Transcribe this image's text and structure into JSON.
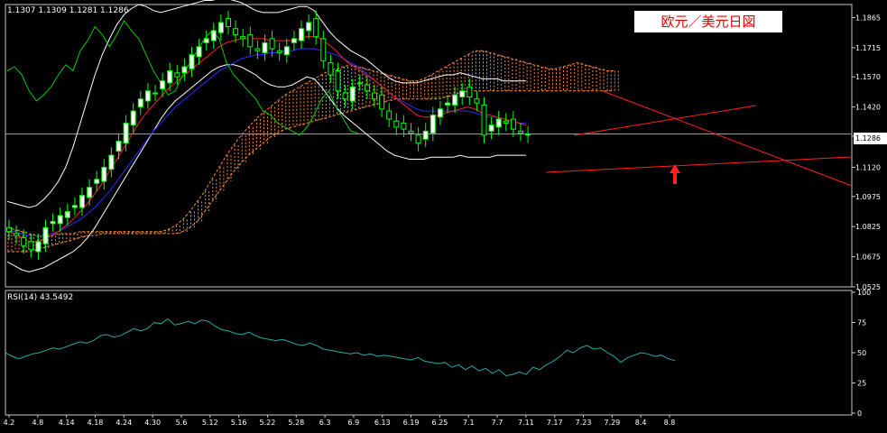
{
  "ohlc_text": "1.1307 1.1309 1.1281 1.1286",
  "title": "欧元／美元日図",
  "current_price": "1.1286",
  "colors": {
    "background": "#000000",
    "frame": "#c8c8c8",
    "bull_candle": "#ffffff",
    "bear_candle": "#000000",
    "candle_wick": "#00ff00",
    "bollinger": "#ffffff",
    "ma_red": "#ff2020",
    "ma_blue": "#2a2aff",
    "chikou_green": "#00cc00",
    "cloud": "#ff8c3c",
    "trendline": "#ff2020",
    "rsi_line": "#2aa8a8",
    "title_text": "#e00000"
  },
  "chart_data": [
    {
      "type": "line",
      "title": "欧元／美元日図",
      "instrument": "EUR/USD",
      "x_tick_labels": [
        "4.2",
        "4.8",
        "4.14",
        "4.18",
        "4.24",
        "4.30",
        "5.6",
        "5.12",
        "5.16",
        "5.22",
        "5.28",
        "6.3",
        "6.9",
        "6.13",
        "6.19",
        "6.25",
        "7.1",
        "7.7",
        "7.11",
        "7.17",
        "7.23",
        "7.29",
        "8.4",
        "8.8"
      ],
      "y_tick_labels": [
        "1.1865",
        "1.1715",
        "1.1570",
        "1.1420",
        "1.1275",
        "1.1120",
        "1.0975",
        "1.0825",
        "1.0675",
        "1.0525"
      ],
      "ylim": [
        1.0525,
        1.193
      ],
      "last_price": 1.1286,
      "indicators": [
        "candlestick",
        "bollinger_bands",
        "moving_average_red",
        "moving_average_blue",
        "ichimoku_cloud",
        "chikou_span"
      ],
      "series": [
        {
          "name": "close",
          "values": [
            1.08,
            1.078,
            1.073,
            1.071,
            1.075,
            1.082,
            1.085,
            1.088,
            1.09,
            1.093,
            1.098,
            1.102,
            1.106,
            1.112,
            1.118,
            1.125,
            1.134,
            1.14,
            1.146,
            1.15,
            1.149,
            1.155,
            1.16,
            1.157,
            1.162,
            1.168,
            1.172,
            1.176,
            1.18,
            1.184,
            1.182,
            1.178,
            1.176,
            1.172,
            1.17,
            1.174,
            1.171,
            1.169,
            1.172,
            1.176,
            1.181,
            1.184,
            1.177,
            1.165,
            1.158,
            1.15,
            1.146,
            1.152,
            1.154,
            1.15,
            1.146,
            1.141,
            1.136,
            1.132,
            1.131,
            1.129,
            1.124,
            1.13,
            1.138,
            1.141,
            1.144,
            1.148,
            1.15,
            1.147,
            1.144,
            1.128,
            1.133,
            1.136,
            1.134,
            1.131,
            1.129,
            1.1286
          ]
        },
        {
          "name": "bollinger_upper",
          "values": [
            1.095,
            1.094,
            1.093,
            1.092,
            1.093,
            1.096,
            1.1,
            1.105,
            1.112,
            1.122,
            1.134,
            1.146,
            1.158,
            1.168,
            1.176,
            1.183,
            1.188,
            1.191,
            1.193,
            1.192,
            1.19,
            1.189,
            1.19,
            1.191,
            1.192,
            1.193,
            1.194,
            1.195,
            1.195,
            1.196,
            1.196,
            1.195,
            1.194,
            1.192,
            1.19,
            1.189,
            1.189,
            1.189,
            1.19,
            1.191,
            1.192,
            1.192,
            1.19,
            1.185,
            1.18,
            1.176,
            1.173,
            1.17,
            1.168,
            1.166,
            1.163,
            1.16,
            1.157,
            1.155,
            1.154,
            1.154,
            1.154,
            1.155,
            1.156,
            1.157,
            1.158,
            1.158,
            1.159,
            1.158,
            1.157,
            1.156,
            1.156,
            1.156,
            1.155,
            1.155,
            1.155,
            1.155
          ]
        },
        {
          "name": "bollinger_lower",
          "values": [
            1.065,
            1.063,
            1.061,
            1.06,
            1.061,
            1.062,
            1.064,
            1.066,
            1.068,
            1.07,
            1.073,
            1.077,
            1.082,
            1.088,
            1.094,
            1.1,
            1.106,
            1.112,
            1.118,
            1.124,
            1.13,
            1.136,
            1.141,
            1.145,
            1.148,
            1.151,
            1.154,
            1.157,
            1.16,
            1.162,
            1.163,
            1.163,
            1.162,
            1.16,
            1.158,
            1.155,
            1.153,
            1.152,
            1.152,
            1.153,
            1.155,
            1.157,
            1.156,
            1.152,
            1.147,
            1.142,
            1.138,
            1.135,
            1.132,
            1.129,
            1.126,
            1.123,
            1.12,
            1.118,
            1.117,
            1.116,
            1.116,
            1.116,
            1.117,
            1.117,
            1.117,
            1.117,
            1.118,
            1.117,
            1.117,
            1.117,
            1.117,
            1.118,
            1.118,
            1.118,
            1.118,
            1.118
          ]
        },
        {
          "name": "ma_red",
          "values": [
            1.08,
            1.079,
            1.077,
            1.075,
            1.075,
            1.076,
            1.078,
            1.08,
            1.083,
            1.086,
            1.09,
            1.094,
            1.099,
            1.104,
            1.11,
            1.116,
            1.122,
            1.128,
            1.134,
            1.139,
            1.143,
            1.147,
            1.151,
            1.154,
            1.157,
            1.16,
            1.163,
            1.166,
            1.169,
            1.172,
            1.174,
            1.175,
            1.176,
            1.176,
            1.176,
            1.176,
            1.175,
            1.175,
            1.175,
            1.175,
            1.176,
            1.177,
            1.177,
            1.176,
            1.173,
            1.17,
            1.166,
            1.163,
            1.161,
            1.158,
            1.156,
            1.153,
            1.15,
            1.147,
            1.144,
            1.141,
            1.138,
            1.137,
            1.137,
            1.138,
            1.139,
            1.14,
            1.141,
            1.142,
            1.141,
            1.139,
            1.138,
            1.137,
            1.136,
            1.135,
            1.134,
            1.133
          ]
        },
        {
          "name": "ma_blue",
          "values": [
            1.081,
            1.08,
            1.079,
            1.078,
            1.078,
            1.078,
            1.079,
            1.08,
            1.082,
            1.084,
            1.086,
            1.089,
            1.092,
            1.096,
            1.1,
            1.105,
            1.11,
            1.115,
            1.12,
            1.125,
            1.13,
            1.134,
            1.138,
            1.142,
            1.145,
            1.148,
            1.151,
            1.154,
            1.157,
            1.16,
            1.162,
            1.164,
            1.166,
            1.167,
            1.168,
            1.168,
            1.169,
            1.169,
            1.17,
            1.17,
            1.171,
            1.171,
            1.171,
            1.17,
            1.169,
            1.168,
            1.166,
            1.164,
            1.162,
            1.159,
            1.156,
            1.153,
            1.15,
            1.147,
            1.145,
            1.143,
            1.141,
            1.14,
            1.14,
            1.14,
            1.14,
            1.14,
            1.14,
            1.14,
            1.139,
            1.138,
            1.137,
            1.137,
            1.136,
            1.135,
            1.134,
            1.134
          ]
        },
        {
          "name": "chikou",
          "values": [
            1.16,
            1.162,
            1.158,
            1.15,
            1.145,
            1.148,
            1.152,
            1.158,
            1.163,
            1.16,
            1.17,
            1.175,
            1.182,
            1.178,
            1.172,
            1.178,
            1.185,
            1.18,
            1.176,
            1.168,
            1.16,
            1.154,
            1.148,
            1.15,
            1.158,
            1.164,
            1.17,
            1.176,
            1.18,
            1.176,
            1.164,
            1.158,
            1.154,
            1.15,
            1.146,
            1.14,
            1.138,
            1.134,
            1.132,
            1.13,
            1.128,
            1.132,
            1.138,
            1.146,
            1.15,
            1.142,
            1.136,
            1.13,
            1.129
          ]
        },
        {
          "name": "cloud_span_a",
          "values": [
            1.082,
            1.081,
            1.08,
            1.079,
            1.078,
            1.078,
            1.078,
            1.079,
            1.079,
            1.079,
            1.08,
            1.08,
            1.08,
            1.08,
            1.08,
            1.08,
            1.08,
            1.08,
            1.08,
            1.08,
            1.08,
            1.08,
            1.081,
            1.083,
            1.086,
            1.09,
            1.095,
            1.1,
            1.106,
            1.112,
            1.118,
            1.123,
            1.128,
            1.132,
            1.136,
            1.139,
            1.142,
            1.145,
            1.148,
            1.15,
            1.152,
            1.154,
            1.156,
            1.158,
            1.16,
            1.161,
            1.162,
            1.163,
            1.162,
            1.161,
            1.16,
            1.159,
            1.158,
            1.157,
            1.156,
            1.155,
            1.155,
            1.156,
            1.158,
            1.16,
            1.162,
            1.164,
            1.166,
            1.168,
            1.17,
            1.17,
            1.169,
            1.168,
            1.167,
            1.166,
            1.165,
            1.164,
            1.163,
            1.162,
            1.161,
            1.161,
            1.162,
            1.163,
            1.164,
            1.163,
            1.162,
            1.161,
            1.16,
            1.16
          ]
        },
        {
          "name": "cloud_span_b",
          "values": [
            1.07,
            1.07,
            1.07,
            1.07,
            1.071,
            1.072,
            1.073,
            1.074,
            1.075,
            1.076,
            1.077,
            1.078,
            1.078,
            1.079,
            1.079,
            1.079,
            1.079,
            1.079,
            1.079,
            1.079,
            1.079,
            1.079,
            1.079,
            1.079,
            1.08,
            1.082,
            1.085,
            1.09,
            1.095,
            1.1,
            1.105,
            1.11,
            1.114,
            1.118,
            1.121,
            1.124,
            1.127,
            1.129,
            1.131,
            1.132,
            1.133,
            1.134,
            1.135,
            1.136,
            1.137,
            1.138,
            1.139,
            1.14,
            1.141,
            1.142,
            1.143,
            1.144,
            1.145,
            1.146,
            1.146,
            1.146,
            1.146,
            1.146,
            1.146,
            1.146,
            1.147,
            1.148,
            1.149,
            1.15,
            1.15,
            1.15,
            1.15,
            1.15,
            1.15,
            1.15,
            1.15,
            1.15,
            1.15,
            1.15,
            1.15,
            1.15,
            1.15,
            1.15,
            1.15,
            1.15,
            1.15,
            1.15,
            1.15,
            1.15
          ]
        }
      ]
    },
    {
      "type": "line",
      "title": "RSI(14) 43.5492",
      "y_tick_labels": [
        "100",
        "75",
        "50",
        "25",
        "0"
      ],
      "ylim": [
        0,
        100
      ],
      "series": [
        {
          "name": "RSI(14)",
          "values": [
            50,
            47,
            45,
            47,
            49,
            50,
            52,
            54,
            53,
            55,
            57,
            59,
            58,
            60,
            64,
            65,
            63,
            64,
            67,
            70,
            68,
            70,
            75,
            74,
            78,
            73,
            74,
            76,
            74,
            77,
            76,
            72,
            69,
            68,
            66,
            65,
            67,
            64,
            62,
            61,
            60,
            61,
            59,
            57,
            56,
            58,
            56,
            53,
            52,
            51,
            50,
            49,
            50,
            48,
            49,
            47,
            48,
            47,
            46,
            45,
            44,
            46,
            43,
            42,
            41,
            42,
            38,
            40,
            36,
            39,
            35,
            37,
            33,
            36,
            31,
            32,
            34,
            32,
            38,
            36,
            40,
            43,
            47,
            52,
            50,
            54,
            56,
            53,
            54,
            50,
            47,
            42,
            46,
            48,
            50,
            49,
            47,
            48,
            45,
            43.5
          ]
        }
      ]
    }
  ]
}
